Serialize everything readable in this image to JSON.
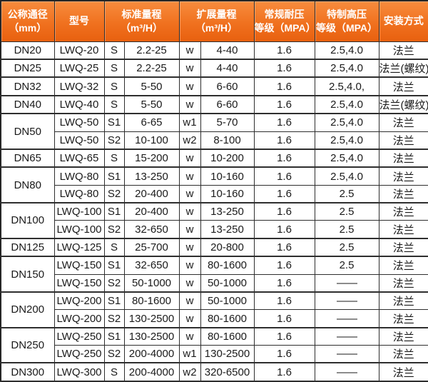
{
  "colors": {
    "header_orange_top": "#f78c3e",
    "header_orange_bottom": "#e8600f",
    "header_text": "#ffffff",
    "grid_border": "#2e2e2e",
    "body_text": "#1a1a1a",
    "body_background": "#ffffff"
  },
  "table": {
    "headers": {
      "col1_line1": "公称通径",
      "col1_line2": "（mm）",
      "col2": "型号",
      "col3_line1": "标准量程",
      "col3_line2": "（m³/H）",
      "col4_line1": "扩展量程",
      "col4_line2": "（m³/H）",
      "col5_line1": "常规耐压",
      "col5_line2": "等级（MPA）",
      "col6_line1": "特制高压",
      "col6_line2": "等级（MPA）",
      "col7": "安装方式"
    }
  },
  "chart_data": {
    "type": "table",
    "columns": [
      "公称通径（mm）",
      "型号",
      "标准量程标志",
      "标准量程（m³/H）",
      "扩展量程标志",
      "扩展量程（m³/H）",
      "常规耐压等级（MPA）",
      "特制高压等级（MPA）",
      "安装方式"
    ],
    "rows": [
      {
        "dn": "DN20",
        "dn_rowspan": 1,
        "model": "LWQ-20",
        "s": "S",
        "std": "2.2-25",
        "w": "w",
        "ext": "4-40",
        "normal": "1.6",
        "high": "2.5,4.0",
        "install": "法兰",
        "group_end": true
      },
      {
        "dn": "DN25",
        "dn_rowspan": 1,
        "model": "LWQ-25",
        "s": "S",
        "std": "2.2-25",
        "w": "w",
        "ext": "4-40",
        "normal": "1.6",
        "high": "2.5,4.0",
        "install": "法兰(螺纹)",
        "group_end": true
      },
      {
        "dn": "DN32",
        "dn_rowspan": 1,
        "model": "LWQ-32",
        "s": "S",
        "std": "5-50",
        "w": "w",
        "ext": "6-60",
        "normal": "1.6",
        "high": "2.5,4.0,",
        "install": "法兰",
        "group_end": true
      },
      {
        "dn": "DN40",
        "dn_rowspan": 1,
        "model": "LWQ-40",
        "s": "S",
        "std": "5-50",
        "w": "w",
        "ext": "6-60",
        "normal": "1.6",
        "high": "2.5,4.0",
        "install": "法兰(螺纹)",
        "group_end": true
      },
      {
        "dn": "DN50",
        "dn_rowspan": 2,
        "model": "LWQ-50",
        "s": "S1",
        "std": "6-65",
        "w": "w1",
        "ext": "5-70",
        "normal": "1.6",
        "high": "2.5,4.0",
        "install": "法兰",
        "group_end": false
      },
      {
        "dn": null,
        "model": "LWQ-50",
        "s": "S2",
        "std": "10-100",
        "w": "w2",
        "ext": "8-100",
        "normal": "1.6",
        "high": "2.5,4.0",
        "install": "法兰",
        "group_end": true
      },
      {
        "dn": "DN65",
        "dn_rowspan": 1,
        "model": "LWQ-65",
        "s": "S",
        "std": "15-200",
        "w": "w",
        "ext": "10-200",
        "normal": "1.6",
        "high": "2.5,4.0",
        "install": "法兰",
        "group_end": true
      },
      {
        "dn": "DN80",
        "dn_rowspan": 2,
        "model": "LWQ-80",
        "s": "S1",
        "std": "13-250",
        "w": "w",
        "ext": "10-160",
        "normal": "1.6",
        "high": "2.5,4.0",
        "install": "法兰",
        "group_end": false
      },
      {
        "dn": null,
        "model": "LWQ-80",
        "s": "S2",
        "std": "20-400",
        "w": "w",
        "ext": "10-160",
        "normal": "1.6",
        "high": "2.5",
        "install": "法兰",
        "group_end": true
      },
      {
        "dn": "DN100",
        "dn_rowspan": 2,
        "model": "LWQ-100",
        "s": "S1",
        "std": "20-400",
        "w": "w",
        "ext": "13-250",
        "normal": "1.6",
        "high": "2.5",
        "install": "法兰",
        "group_end": false
      },
      {
        "dn": null,
        "model": "LWQ-100",
        "s": "S2",
        "std": "32-650",
        "w": "w",
        "ext": "13-250",
        "normal": "1.6",
        "high": "2.5",
        "install": "法兰",
        "group_end": true
      },
      {
        "dn": "DN125",
        "dn_rowspan": 1,
        "model": "LWQ-125",
        "s": "S",
        "std": "25-700",
        "w": "w",
        "ext": "20-800",
        "normal": "1.6",
        "high": "2.5",
        "install": "法兰",
        "group_end": true
      },
      {
        "dn": "DN150",
        "dn_rowspan": 2,
        "model": "LWQ-150",
        "s": "S1",
        "std": "32-650",
        "w": "w",
        "ext": "80-1600",
        "normal": "1.6",
        "high": "2.5",
        "install": "法兰",
        "group_end": false
      },
      {
        "dn": null,
        "model": "LWQ-150",
        "s": "S2",
        "std": "50-1000",
        "w": "w",
        "ext": "50-1000",
        "normal": "1.6",
        "high": "——",
        "install": "法兰",
        "group_end": true
      },
      {
        "dn": "DN200",
        "dn_rowspan": 2,
        "model": "LWQ-200",
        "s": "S1",
        "std": "80-1600",
        "w": "w",
        "ext": "50-1000",
        "normal": "1.6",
        "high": "——",
        "install": "法兰",
        "group_end": false
      },
      {
        "dn": null,
        "model": "LWQ-200",
        "s": "S2",
        "std": "130-2500",
        "w": "w",
        "ext": "80-1600",
        "normal": "1.6",
        "high": "——",
        "install": "法兰",
        "group_end": true
      },
      {
        "dn": "DN250",
        "dn_rowspan": 2,
        "model": "LWQ-250",
        "s": "S1",
        "std": "130-2500",
        "w": "w",
        "ext": "80-1600",
        "normal": "1.6",
        "high": "——",
        "install": "法兰",
        "group_end": false
      },
      {
        "dn": null,
        "model": "LWQ-250",
        "s": "S2",
        "std": "200-4000",
        "w": "w1",
        "ext": "130-2500",
        "normal": "1.6",
        "high": "——",
        "install": "法兰",
        "group_end": true
      },
      {
        "dn": "DN300",
        "dn_rowspan": 1,
        "model": "LWQ-300",
        "s": "S",
        "std": "200-4000",
        "w": "w2",
        "ext": "320-6500",
        "normal": "1.6",
        "high": "——",
        "install": "法兰",
        "group_end": true
      }
    ]
  }
}
